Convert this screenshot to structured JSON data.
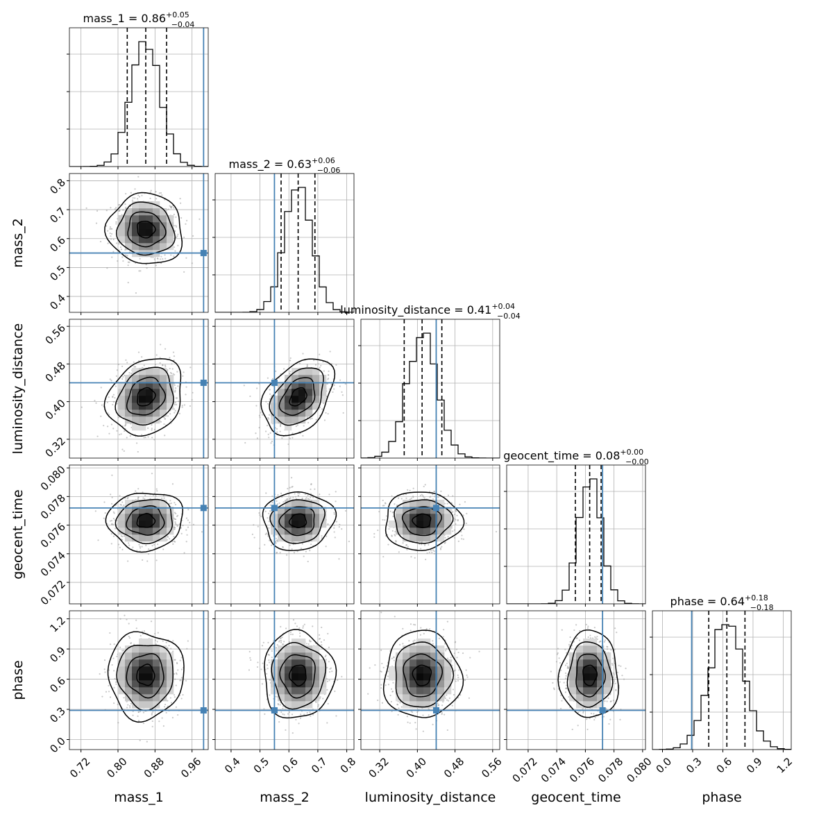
{
  "chart_data": {
    "type": "corner",
    "params": [
      {
        "name": "mass_1",
        "label": "mass_1",
        "lim": [
          0.695,
          0.995
        ],
        "ticks": [
          0.72,
          0.8,
          0.88,
          0.96
        ],
        "tick_labels": [
          "0.72",
          "0.80",
          "0.88",
          "0.96"
        ],
        "median": 0.86,
        "lo": 0.82,
        "hi": 0.905,
        "truth": 0.985,
        "sd": 0.032,
        "title_value": "0.86",
        "title_plus": "+0.05",
        "title_minus": "−0.04"
      },
      {
        "name": "mass_2",
        "label": "mass_2",
        "lim": [
          0.345,
          0.825
        ],
        "ticks": [
          0.4,
          0.5,
          0.6,
          0.7,
          0.8
        ],
        "tick_labels": [
          "0.4",
          "0.5",
          "0.6",
          "0.7",
          "0.8"
        ],
        "median": 0.632,
        "lo": 0.573,
        "hi": 0.69,
        "truth": 0.55,
        "sd": 0.048,
        "title_value": "0.63",
        "title_plus": "+0.06",
        "title_minus": "−0.06"
      },
      {
        "name": "luminosity_distance",
        "label": "luminosity_distance",
        "lim": [
          0.28,
          0.575
        ],
        "ticks": [
          0.32,
          0.4,
          0.48,
          0.56
        ],
        "tick_labels": [
          "0.32",
          "0.40",
          "0.48",
          "0.56"
        ],
        "median": 0.41,
        "lo": 0.372,
        "hi": 0.452,
        "truth": 0.44,
        "sd": 0.032,
        "title_value": "0.41",
        "title_plus": "+0.04",
        "title_minus": "−0.04"
      },
      {
        "name": "geocent_time",
        "label": "geocent_time",
        "lim": [
          0.0705,
          0.0802
        ],
        "ticks": [
          0.072,
          0.074,
          0.076,
          0.078,
          0.08
        ],
        "tick_labels": [
          "0.072",
          "0.074",
          "0.076",
          "0.078",
          "0.080"
        ],
        "median": 0.0763,
        "lo": 0.0753,
        "hi": 0.0771,
        "truth": 0.0772,
        "sd": 0.0008,
        "title_value": "0.08",
        "title_plus": "+0.00",
        "title_minus": "−0.00"
      },
      {
        "name": "phase",
        "label": "phase",
        "lim": [
          -0.1,
          1.28
        ],
        "ticks": [
          0.0,
          0.3,
          0.6,
          0.9,
          1.2
        ],
        "tick_labels": [
          "0.0",
          "0.3",
          "0.6",
          "0.9",
          "1.2"
        ],
        "median": 0.64,
        "lo": 0.46,
        "hi": 0.82,
        "truth": 0.29,
        "sd": 0.17,
        "title_value": "0.64",
        "title_plus": "+0.18",
        "title_minus": "−0.18"
      }
    ],
    "correlations": {
      "1-0": -0.05,
      "2-0": 0.2,
      "2-1": 0.38,
      "3-0": 0.05,
      "3-1": 0.05,
      "3-2": 0.02,
      "4-0": 0.0,
      "4-1": 0.0,
      "4-2": 0.0,
      "4-3": 0.0
    },
    "ylabels_rows": [
      "mass_2",
      "luminosity_distance",
      "geocent_time",
      "phase"
    ],
    "xlabels_cols": [
      "mass_1",
      "mass_2",
      "luminosity_distance",
      "geocent_time",
      "phase"
    ],
    "title_sep": " = ",
    "grid": true,
    "colors": {
      "truth": "#4682b4",
      "hist": "#000000",
      "scatter": "#9a9a9a",
      "grid": "#b0b0b0",
      "quantile": "#000000"
    }
  }
}
